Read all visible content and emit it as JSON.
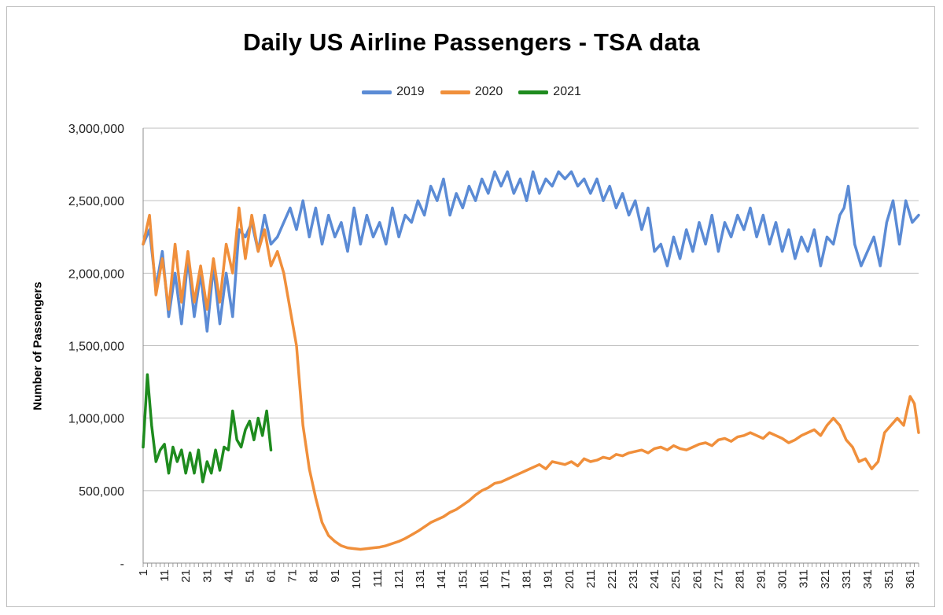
{
  "chart_data": {
    "type": "line",
    "title": "Daily US Airline Passengers - TSA data",
    "ylabel": "Number of Passengers",
    "xlabel": "",
    "xlim": [
      1,
      365
    ],
    "ylim": [
      0,
      3000000
    ],
    "y_ticks": [
      0,
      500000,
      1000000,
      1500000,
      2000000,
      2500000,
      3000000
    ],
    "y_tick_labels": [
      "-",
      "500,000",
      "1,000,000",
      "1,500,000",
      "2,000,000",
      "2,500,000",
      "3,000,000"
    ],
    "x_ticks": [
      1,
      11,
      21,
      31,
      41,
      51,
      61,
      71,
      81,
      91,
      101,
      111,
      121,
      131,
      141,
      151,
      161,
      171,
      181,
      191,
      201,
      211,
      221,
      231,
      241,
      251,
      261,
      271,
      281,
      291,
      301,
      311,
      321,
      331,
      341,
      351,
      361
    ],
    "x_tick_labels": [
      "1",
      "11",
      "21",
      "31",
      "41",
      "51",
      "61",
      "71",
      "81",
      "91",
      "101",
      "111",
      "121",
      "131",
      "141",
      "151",
      "161",
      "171",
      "181",
      "191",
      "201",
      "211",
      "221",
      "231",
      "241",
      "251",
      "261",
      "271",
      "281",
      "291",
      "301",
      "311",
      "321",
      "331",
      "341",
      "351",
      "361"
    ],
    "grid": "horizontal",
    "legend_position": "top",
    "series": [
      {
        "name": "2019",
        "color": "#5b8bd5",
        "x": [
          1,
          4,
          7,
          10,
          13,
          16,
          19,
          22,
          25,
          28,
          31,
          34,
          37,
          40,
          43,
          46,
          49,
          52,
          55,
          58,
          61,
          64,
          67,
          70,
          73,
          76,
          79,
          82,
          85,
          88,
          91,
          94,
          97,
          100,
          103,
          106,
          109,
          112,
          115,
          118,
          121,
          124,
          127,
          130,
          133,
          136,
          139,
          142,
          145,
          148,
          151,
          154,
          157,
          160,
          163,
          166,
          169,
          172,
          175,
          178,
          181,
          184,
          187,
          190,
          193,
          196,
          199,
          202,
          205,
          208,
          211,
          214,
          217,
          220,
          223,
          226,
          229,
          232,
          235,
          238,
          241,
          244,
          247,
          250,
          253,
          256,
          259,
          262,
          265,
          268,
          271,
          274,
          277,
          280,
          283,
          286,
          289,
          292,
          295,
          298,
          301,
          304,
          307,
          310,
          313,
          316,
          319,
          322,
          325,
          328,
          330,
          332,
          335,
          338,
          341,
          344,
          347,
          350,
          353,
          356,
          359,
          362,
          365
        ],
        "y": [
          2200000,
          2300000,
          1900000,
          2150000,
          1700000,
          2000000,
          1650000,
          2100000,
          1700000,
          2000000,
          1600000,
          2050000,
          1650000,
          2000000,
          1700000,
          2300000,
          2250000,
          2350000,
          2150000,
          2400000,
          2200000,
          2250000,
          2350000,
          2450000,
          2300000,
          2500000,
          2250000,
          2450000,
          2200000,
          2400000,
          2250000,
          2350000,
          2150000,
          2450000,
          2200000,
          2400000,
          2250000,
          2350000,
          2200000,
          2450000,
          2250000,
          2400000,
          2350000,
          2500000,
          2400000,
          2600000,
          2500000,
          2650000,
          2400000,
          2550000,
          2450000,
          2600000,
          2500000,
          2650000,
          2550000,
          2700000,
          2600000,
          2700000,
          2550000,
          2650000,
          2500000,
          2700000,
          2550000,
          2650000,
          2600000,
          2700000,
          2650000,
          2700000,
          2600000,
          2650000,
          2550000,
          2650000,
          2500000,
          2600000,
          2450000,
          2550000,
          2400000,
          2500000,
          2300000,
          2450000,
          2150000,
          2200000,
          2050000,
          2250000,
          2100000,
          2300000,
          2150000,
          2350000,
          2200000,
          2400000,
          2150000,
          2350000,
          2250000,
          2400000,
          2300000,
          2450000,
          2250000,
          2400000,
          2200000,
          2350000,
          2150000,
          2300000,
          2100000,
          2250000,
          2150000,
          2300000,
          2050000,
          2250000,
          2200000,
          2400000,
          2450000,
          2600000,
          2200000,
          2050000,
          2150000,
          2250000,
          2050000,
          2350000,
          2500000,
          2200000,
          2500000,
          2350000,
          2400000
        ]
      },
      {
        "name": "2020",
        "color": "#f08f3b",
        "x": [
          1,
          4,
          7,
          10,
          13,
          16,
          19,
          22,
          25,
          28,
          31,
          34,
          37,
          40,
          43,
          46,
          49,
          52,
          55,
          58,
          61,
          64,
          67,
          70,
          73,
          76,
          79,
          82,
          85,
          88,
          91,
          94,
          97,
          100,
          103,
          106,
          109,
          112,
          115,
          118,
          121,
          124,
          127,
          130,
          133,
          136,
          139,
          142,
          145,
          148,
          151,
          154,
          157,
          160,
          163,
          166,
          169,
          172,
          175,
          178,
          181,
          184,
          187,
          190,
          193,
          196,
          199,
          202,
          205,
          208,
          211,
          214,
          217,
          220,
          223,
          226,
          229,
          232,
          235,
          238,
          241,
          244,
          247,
          250,
          253,
          256,
          259,
          262,
          265,
          268,
          271,
          274,
          277,
          280,
          283,
          286,
          289,
          292,
          295,
          298,
          301,
          304,
          307,
          310,
          313,
          316,
          319,
          322,
          325,
          328,
          331,
          334,
          337,
          340,
          343,
          346,
          349,
          352,
          355,
          358,
          361,
          363,
          365
        ],
        "y": [
          2200000,
          2400000,
          1850000,
          2100000,
          1750000,
          2200000,
          1800000,
          2150000,
          1800000,
          2050000,
          1750000,
          2100000,
          1800000,
          2200000,
          2000000,
          2450000,
          2100000,
          2400000,
          2150000,
          2300000,
          2050000,
          2150000,
          2000000,
          1750000,
          1500000,
          950000,
          650000,
          450000,
          280000,
          190000,
          150000,
          120000,
          105000,
          100000,
          95000,
          100000,
          105000,
          110000,
          120000,
          135000,
          150000,
          170000,
          195000,
          220000,
          250000,
          280000,
          300000,
          320000,
          350000,
          370000,
          400000,
          430000,
          470000,
          500000,
          520000,
          550000,
          560000,
          580000,
          600000,
          620000,
          640000,
          660000,
          680000,
          650000,
          700000,
          690000,
          680000,
          700000,
          670000,
          720000,
          700000,
          710000,
          730000,
          720000,
          750000,
          740000,
          760000,
          770000,
          780000,
          760000,
          790000,
          800000,
          780000,
          810000,
          790000,
          780000,
          800000,
          820000,
          830000,
          810000,
          850000,
          860000,
          840000,
          870000,
          880000,
          900000,
          880000,
          860000,
          900000,
          880000,
          860000,
          830000,
          850000,
          880000,
          900000,
          920000,
          880000,
          950000,
          1000000,
          950000,
          850000,
          800000,
          700000,
          720000,
          650000,
          700000,
          900000,
          950000,
          1000000,
          950000,
          1150000,
          1100000,
          900000
        ]
      },
      {
        "name": "2021",
        "color": "#1e8b1e",
        "x": [
          1,
          3,
          5,
          7,
          9,
          11,
          13,
          15,
          17,
          19,
          21,
          23,
          25,
          27,
          29,
          31,
          33,
          35,
          37,
          39,
          41,
          43,
          45,
          47,
          49,
          51,
          53,
          55,
          57,
          59,
          61
        ],
        "y": [
          800000,
          1300000,
          950000,
          700000,
          780000,
          820000,
          620000,
          800000,
          700000,
          780000,
          620000,
          760000,
          620000,
          780000,
          560000,
          700000,
          620000,
          780000,
          640000,
          800000,
          780000,
          1050000,
          850000,
          800000,
          920000,
          980000,
          850000,
          1000000,
          880000,
          1050000,
          780000
        ]
      }
    ]
  }
}
